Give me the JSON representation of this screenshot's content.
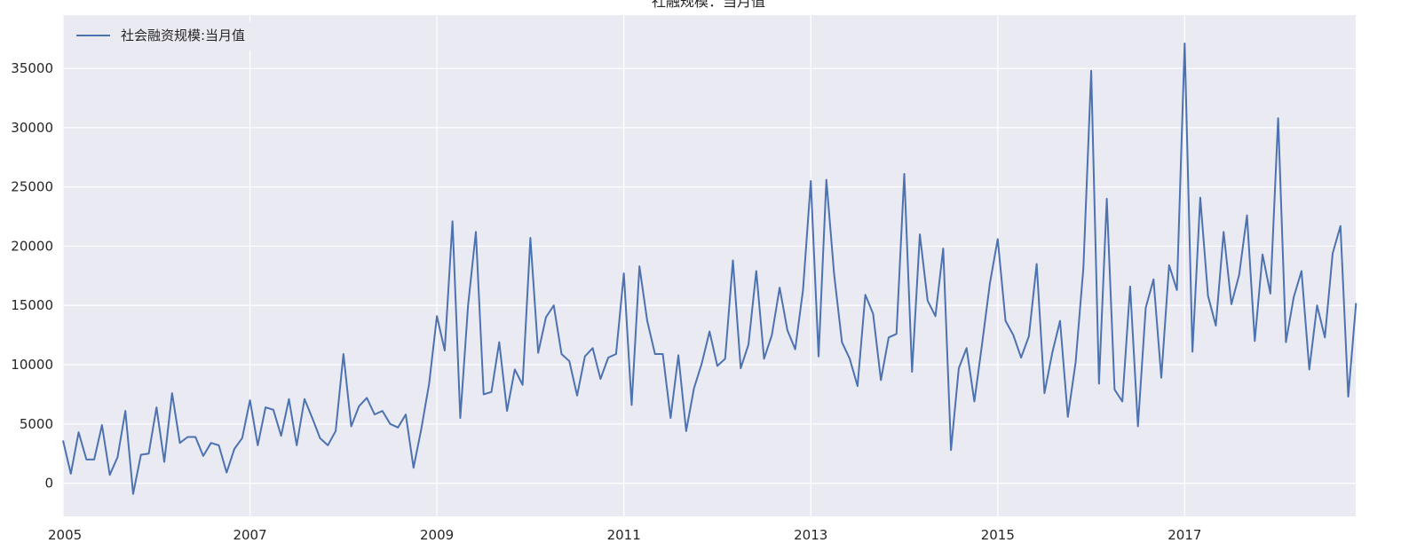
{
  "chart_data": {
    "type": "line",
    "title": "社融规模：当月值",
    "xlabel": "",
    "ylabel": "",
    "xlim": [
      2005,
      2018.83
    ],
    "ylim": [
      -2800,
      39500
    ],
    "x_ticks": [
      "2005",
      "2007",
      "2009",
      "2011",
      "2013",
      "2015",
      "2017"
    ],
    "y_ticks": [
      "0",
      "5000",
      "10000",
      "15000",
      "20000",
      "25000",
      "30000",
      "35000"
    ],
    "grid": true,
    "legend_position": "top-left",
    "colors": {
      "line": "#4c72b0",
      "background": "#eaeaf2",
      "grid": "#ffffff"
    },
    "series": [
      {
        "name": "社会融资规模:当月值",
        "start": "2005-01",
        "frequency": "monthly",
        "values": [
          3600,
          800,
          4300,
          2000,
          2000,
          4900,
          700,
          2200,
          6100,
          -900,
          2400,
          2500,
          6400,
          1800,
          7600,
          3400,
          3900,
          3900,
          2300,
          3400,
          3200,
          900,
          2900,
          3800,
          7000,
          3200,
          6400,
          6200,
          4000,
          7100,
          3200,
          7100,
          5500,
          3800,
          3200,
          4400,
          10900,
          4800,
          6500,
          7200,
          5800,
          6100,
          5000,
          4700,
          5800,
          1300,
          4600,
          8400,
          14100,
          11200,
          22100,
          5500,
          15000,
          21200,
          7500,
          7700,
          11900,
          6100,
          9600,
          8300,
          20700,
          11000,
          14000,
          15000,
          10900,
          10300,
          7400,
          10700,
          11400,
          8800,
          10600,
          10900,
          17700,
          6600,
          18300,
          13700,
          10900,
          10900,
          5500,
          10800,
          4400,
          8000,
          10100,
          12800,
          9900,
          10500,
          18800,
          9700,
          11700,
          17900,
          10500,
          12500,
          16500,
          12900,
          11300,
          16300,
          25500,
          10700,
          25600,
          17600,
          11900,
          10500,
          8200,
          15900,
          14300,
          8700,
          12300,
          12600,
          26100,
          9400,
          21000,
          15400,
          14100,
          19800,
          2800,
          9700,
          11400,
          6900,
          11800,
          16900,
          20600,
          13700,
          12500,
          10600,
          12400,
          18500,
          7600,
          11000,
          13700,
          5600,
          10200,
          18200,
          34800,
          8400,
          24000,
          7900,
          6900,
          16600,
          4800,
          14800,
          17200,
          8900,
          18400,
          16300,
          37100,
          11100,
          24100,
          15800,
          13300,
          21200,
          15100,
          17600,
          22600,
          12000,
          19300,
          16000,
          30800,
          11900,
          15700,
          17900,
          9600,
          15000,
          12300,
          19400,
          21700,
          7300,
          15200
        ]
      }
    ]
  }
}
